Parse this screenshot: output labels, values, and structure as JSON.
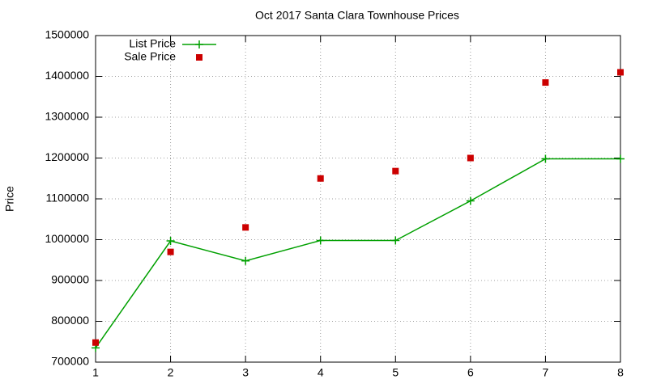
{
  "chart_data": {
    "type": "line",
    "title": "Oct 2017 Santa Clara Townhouse Prices",
    "y_label": "Price",
    "x": [
      1,
      2,
      3,
      4,
      5,
      6,
      7,
      8
    ],
    "series": [
      {
        "name": "List Price",
        "color": "#00a000",
        "style": "linespoints",
        "values": [
          735000,
          997000,
          948000,
          998000,
          998000,
          1095000,
          1198000,
          1198000
        ]
      },
      {
        "name": "Sale Price",
        "color": "#cc0000",
        "style": "points",
        "values": [
          748000,
          970000,
          1030000,
          1150000,
          1168000,
          1200000,
          1385000,
          1410000
        ]
      }
    ],
    "xlim": [
      1,
      8
    ],
    "xticks": [
      1,
      2,
      3,
      4,
      5,
      6,
      7,
      8
    ],
    "ylim": [
      700000,
      1500000
    ],
    "yticks": [
      700000,
      800000,
      900000,
      1000000,
      1100000,
      1200000,
      1300000,
      1400000,
      1500000
    ],
    "grid": true,
    "legend": "top-left"
  }
}
